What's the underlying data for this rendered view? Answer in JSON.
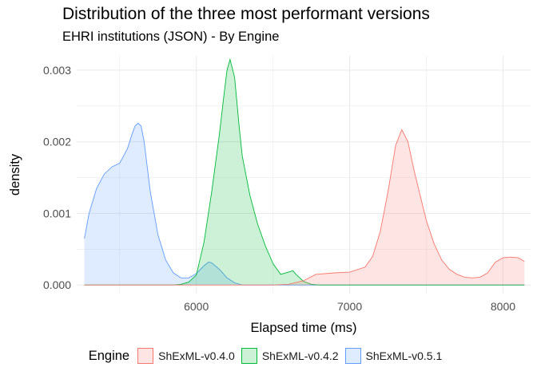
{
  "title": "Distribution of the three most performant versions",
  "subtitle": "EHRI institutions (JSON) - By Engine",
  "chart_data": {
    "type": "area",
    "subtype": "density",
    "title": "Distribution of the three most performant versions",
    "subtitle": "EHRI institutions (JSON) - By Engine",
    "xlabel": "Elapsed time (ms)",
    "ylabel": "density",
    "xlim": [
      5220,
      8180
    ],
    "ylim": [
      -0.00012,
      0.0032
    ],
    "x_ticks": [
      6000,
      7000,
      8000
    ],
    "x_tick_labels": [
      "6000",
      "7000",
      "8000"
    ],
    "y_ticks": [
      0,
      0.001,
      0.002,
      0.003
    ],
    "y_tick_labels": [
      "0.000",
      "0.001",
      "0.002",
      "0.003"
    ],
    "grid": true,
    "legend_position": "bottom",
    "legend_title": "Engine",
    "series": [
      {
        "name": "ShExML-v0.4.0",
        "line_color": "#F8766D",
        "fill_color": "#F8766D",
        "x": [
          5270,
          6500,
          6600,
          6700,
          6780,
          6900,
          7000,
          7100,
          7150,
          7200,
          7250,
          7300,
          7340,
          7380,
          7420,
          7460,
          7500,
          7550,
          7600,
          7650,
          7700,
          7750,
          7800,
          7850,
          7900,
          7950,
          8000,
          8050,
          8100,
          8140
        ],
        "y": [
          0,
          0,
          1e-05,
          6e-05,
          0.00015,
          0.00017,
          0.00018,
          0.00025,
          0.0004,
          0.00075,
          0.0013,
          0.00195,
          0.00217,
          0.002,
          0.0016,
          0.00125,
          0.0009,
          0.00058,
          0.00035,
          0.00022,
          0.00015,
          0.00011,
          0.0001,
          0.00011,
          0.00017,
          0.00032,
          0.00038,
          0.00039,
          0.00038,
          0.00033
        ]
      },
      {
        "name": "ShExML-v0.4.2",
        "line_color": "#00BA38",
        "fill_color": "#00BA38",
        "x": [
          5270,
          5850,
          5900,
          5950,
          6000,
          6050,
          6100,
          6150,
          6180,
          6200,
          6220,
          6250,
          6280,
          6300,
          6350,
          6400,
          6450,
          6500,
          6550,
          6600,
          6630,
          6650,
          6700,
          6750,
          6800,
          8140
        ],
        "y": [
          0,
          0,
          1e-05,
          4e-05,
          0.00014,
          0.0006,
          0.0013,
          0.0021,
          0.00265,
          0.003,
          0.00315,
          0.0029,
          0.0022,
          0.0018,
          0.00125,
          0.00085,
          0.00055,
          0.0003,
          0.00015,
          0.00018,
          0.0002,
          0.00015,
          5e-05,
          1e-05,
          0,
          0
        ]
      },
      {
        "name": "ShExML-v0.5.1",
        "line_color": "#619CFF",
        "fill_color": "#619CFF",
        "x": [
          5270,
          5300,
          5350,
          5400,
          5450,
          5500,
          5550,
          5580,
          5600,
          5620,
          5640,
          5660,
          5700,
          5750,
          5800,
          5850,
          5900,
          5950,
          6000,
          6050,
          6080,
          6100,
          6150,
          6200,
          6250,
          6300,
          6350,
          6400,
          8140
        ],
        "y": [
          0.00065,
          0.001,
          0.00135,
          0.00155,
          0.00165,
          0.0017,
          0.0019,
          0.0021,
          0.00222,
          0.00226,
          0.00222,
          0.002,
          0.0013,
          0.0007,
          0.00035,
          0.00017,
          0.0001,
          0.0001,
          0.00016,
          0.00027,
          0.00032,
          0.00031,
          0.00022,
          0.0001,
          3e-05,
          0,
          0,
          0,
          0
        ]
      }
    ]
  }
}
